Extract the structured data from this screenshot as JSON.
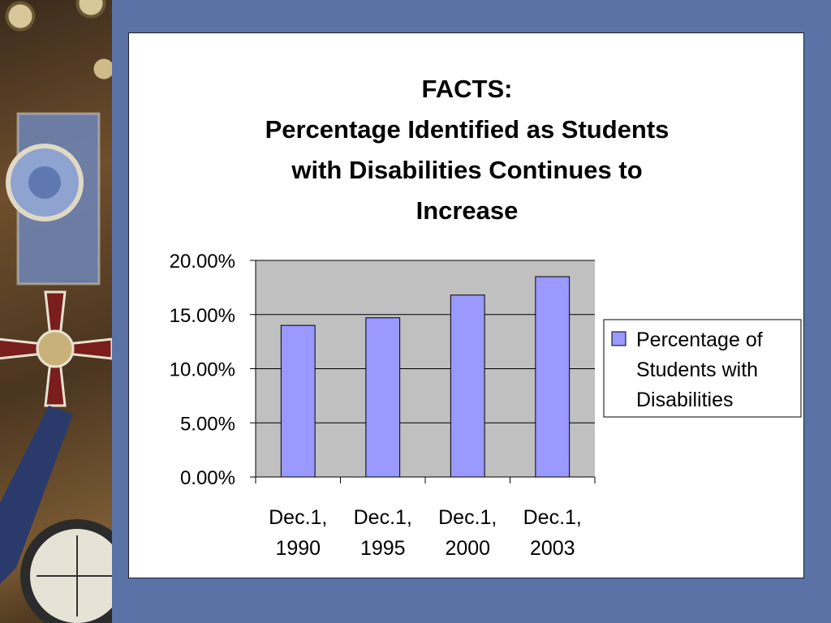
{
  "chart_data": {
    "type": "bar",
    "title_lines": [
      "FACTS:",
      "Percentage Identified as Students",
      "with Disabilities Continues to",
      "Increase"
    ],
    "categories": [
      [
        "Dec.1,",
        "1990"
      ],
      [
        "Dec.1,",
        "1995"
      ],
      [
        "Dec.1,",
        "2000"
      ],
      [
        "Dec.1,",
        "2003"
      ]
    ],
    "series": [
      {
        "name_lines": [
          "Percentage of",
          "Students with",
          "Disabilities"
        ],
        "values": [
          14.0,
          14.7,
          16.8,
          18.5
        ],
        "color": "#9999ff"
      }
    ],
    "y_ticks": [
      "0.00%",
      "5.00%",
      "10.00%",
      "15.00%",
      "20.00%"
    ],
    "ylim": [
      0,
      20
    ],
    "grid": true,
    "plot_background": "#c0c0c0",
    "legend_position": "right"
  }
}
